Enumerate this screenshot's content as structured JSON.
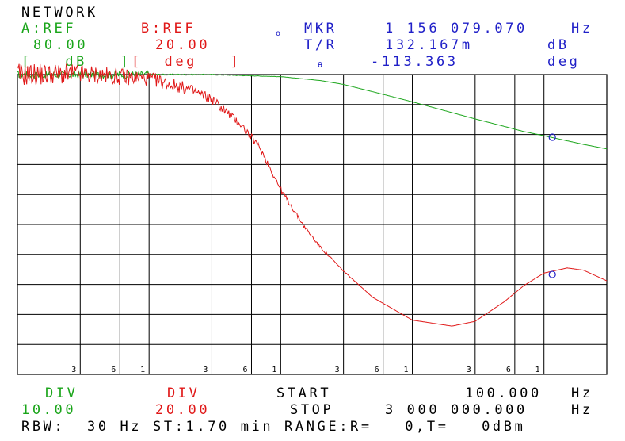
{
  "header": {
    "title": "NETWORK",
    "a_ref_label": "A:REF",
    "b_ref_label": "B:REF",
    "a_ref_value": "80.00",
    "b_ref_value": "20.00",
    "a_unit": "[   dB   ]",
    "b_unit": "[  deg   ]",
    "mkr_icon_glyph": "o",
    "mkr_label": "MKR",
    "mkr_value": "1 156 079.070",
    "mkr_unit": "Hz",
    "tr_label": "T/R",
    "tr_value": "132.167m",
    "tr_unit": "dB",
    "theta_glyph": "θ",
    "phase_value": "-113.363",
    "phase_unit": "deg"
  },
  "footer": {
    "a_div_label": "DIV",
    "a_div_value": "10.00",
    "b_div_label": "DIV",
    "b_div_value": "20.00",
    "start_label": "START",
    "start_value": "100.000",
    "start_unit": "Hz",
    "stop_label": "STOP",
    "stop_value": "3 000 000.000",
    "stop_unit": "Hz",
    "status_line": "RBW:  30 Hz ST:1.70 min RANGE:R=   0,T=   0dBm"
  },
  "colors": {
    "trace_a": "#1aa51a",
    "trace_b": "#e01818",
    "marker": "#2020c8",
    "grid": "#000000"
  },
  "chart_data": {
    "type": "line",
    "x_scale": "log",
    "xlim_hz": [
      100,
      3000000
    ],
    "x_tick_labels": [
      "3",
      "6",
      "1",
      "3",
      "6",
      "1",
      "3",
      "6",
      "1",
      "3",
      "6",
      "1"
    ],
    "x_tick_freqs_hz": [
      300,
      600,
      1000,
      3000,
      6000,
      10000,
      30000,
      60000,
      100000,
      300000,
      600000,
      1000000
    ],
    "grid_divisions": 10,
    "series": [
      {
        "trace": "A",
        "unit": "dB",
        "ref": 80.0,
        "div": 10.0,
        "noisy_below_hz": 1000,
        "x_hz": [
          100,
          300,
          1000,
          3000,
          10000,
          20000,
          30000,
          60000,
          100000,
          200000,
          300000,
          500000,
          700000,
          1000000,
          1500000,
          2000000,
          3000000
        ],
        "y": [
          80.0,
          79.9,
          80.0,
          80.0,
          79.3,
          78.0,
          76.7,
          73.4,
          70.9,
          67.3,
          65.2,
          62.7,
          61.0,
          59.6,
          57.9,
          56.7,
          55.2
        ]
      },
      {
        "trace": "B",
        "unit": "deg",
        "ref": 20.0,
        "div": 20.0,
        "noise_amp_deg": 8,
        "x_hz": [
          100,
          300,
          1000,
          2000,
          3000,
          5000,
          7000,
          10000,
          15000,
          20000,
          30000,
          50000,
          100000,
          200000,
          300000,
          500000,
          700000,
          1000000,
          1500000,
          2000000,
          3000000
        ],
        "y": [
          20.0,
          20.4,
          17.4,
          10.2,
          3.6,
          -13.5,
          -29.3,
          -56.6,
          -81.0,
          -95.2,
          -111.1,
          -128.6,
          -143.8,
          -147.8,
          -144.6,
          -131.5,
          -120.9,
          -112.4,
          -109.0,
          -110.5,
          -117.6
        ]
      }
    ],
    "markers": [
      {
        "trace": "A",
        "x_hz": 1156079.07,
        "y": 59.1
      },
      {
        "trace": "B",
        "x_hz": 1156079.07,
        "y": -113.363
      }
    ]
  }
}
